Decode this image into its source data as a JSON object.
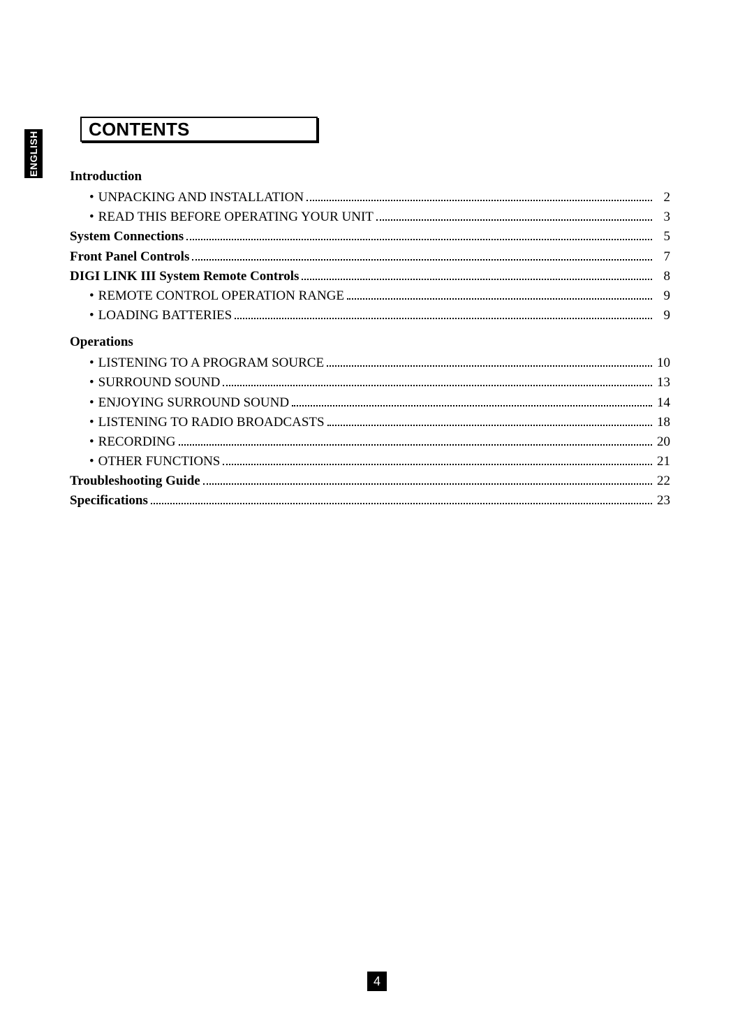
{
  "language_tab": "ENGLISH",
  "title": "CONTENTS",
  "page_number": "4",
  "typography": {
    "body_font": "Times New Roman",
    "title_font": "Arial Black / Helvetica Black",
    "body_size_pt": 14,
    "title_size_pt": 20,
    "tab_size_pt": 10
  },
  "colors": {
    "text": "#000000",
    "background": "#ffffff",
    "tab_bg": "#000000",
    "tab_text": "#ffffff",
    "footer_bg": "#000000",
    "footer_text": "#ffffff"
  },
  "toc": [
    {
      "type": "heading",
      "label": "Introduction"
    },
    {
      "type": "sub",
      "label": "UNPACKING AND INSTALLATION",
      "page": "2"
    },
    {
      "type": "sub",
      "label": "READ THIS BEFORE OPERATING YOUR UNIT",
      "page": "3"
    },
    {
      "type": "top",
      "label": "System Connections",
      "page": "5"
    },
    {
      "type": "top",
      "label": "Front Panel Controls",
      "page": "7"
    },
    {
      "type": "top",
      "label": "DIGI LINK III System Remote Controls",
      "page": "8"
    },
    {
      "type": "sub",
      "label": "REMOTE CONTROL OPERATION RANGE",
      "page": "9"
    },
    {
      "type": "sub",
      "label": "LOADING BATTERIES",
      "page": "9"
    },
    {
      "type": "heading",
      "label": "Operations"
    },
    {
      "type": "sub",
      "label": "LISTENING TO A PROGRAM SOURCE",
      "page": "10"
    },
    {
      "type": "sub",
      "label": "SURROUND SOUND",
      "page": "13"
    },
    {
      "type": "sub",
      "label": "ENJOYING SURROUND SOUND",
      "page": "14"
    },
    {
      "type": "sub",
      "label": "LISTENING TO RADIO BROADCASTS",
      "page": "18"
    },
    {
      "type": "sub",
      "label": "RECORDING",
      "page": "20"
    },
    {
      "type": "sub",
      "label": "OTHER FUNCTIONS",
      "page": "21"
    },
    {
      "type": "top",
      "label": "Troubleshooting Guide",
      "page": "22"
    },
    {
      "type": "top",
      "label": "Specifications",
      "page": "23"
    }
  ]
}
